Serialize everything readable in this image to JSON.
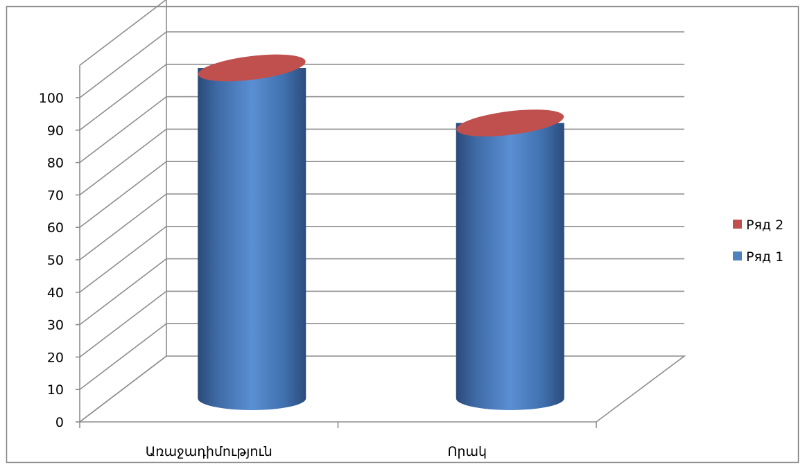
{
  "chart_data": {
    "type": "bar",
    "style": "3d-cylinder",
    "categories": [
      "Առաջադիմություն",
      "Որակ"
    ],
    "series": [
      {
        "name": "Ряд 1",
        "values": [
          100,
          83
        ],
        "color": "#4f81bd"
      },
      {
        "name": "Ряд 2",
        "values": [
          0,
          0
        ],
        "color": "#c0504d"
      }
    ],
    "y_ticks": [
      0,
      10,
      20,
      30,
      40,
      50,
      60,
      70,
      80,
      90,
      100
    ],
    "ylim": [
      0,
      100
    ],
    "grid": true,
    "legend_position": "right",
    "legend_order": [
      "Ряд 2",
      "Ряд 1"
    ]
  }
}
